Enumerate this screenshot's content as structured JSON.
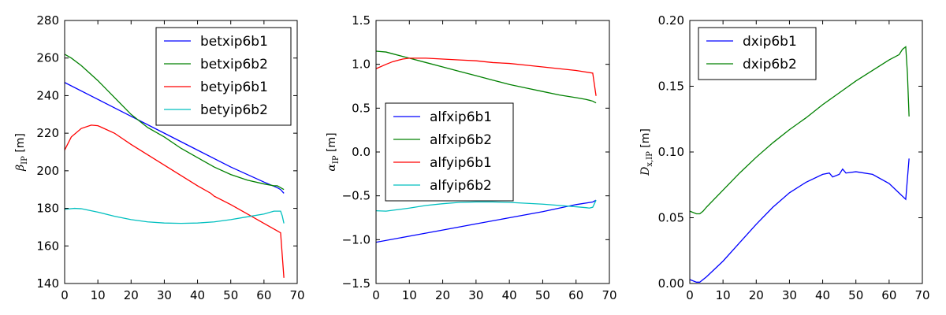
{
  "chart_data": [
    {
      "type": "line",
      "ylabel_main": "β",
      "ylabel_sub": "IP",
      "ylabel_unit": " [m]",
      "xlim": [
        0,
        70
      ],
      "ylim": [
        140,
        280
      ],
      "xticks": [
        0,
        10,
        20,
        30,
        40,
        50,
        60,
        70
      ],
      "yticks": [
        140,
        160,
        180,
        200,
        220,
        240,
        260,
        280
      ],
      "legend_position": "top-right",
      "series": [
        {
          "name": "betxip6b1",
          "color": "#0000ff",
          "x": [
            0,
            10,
            20,
            30,
            40,
            50,
            60,
            64,
            65,
            66
          ],
          "y": [
            247,
            238,
            229,
            220,
            211,
            202,
            194,
            191,
            190,
            188
          ]
        },
        {
          "name": "betxip6b2",
          "color": "#008000",
          "x": [
            0,
            2,
            5,
            10,
            15,
            20,
            25,
            30,
            35,
            40,
            45,
            50,
            55,
            60,
            63,
            64,
            65,
            66
          ],
          "y": [
            262,
            260,
            256,
            248,
            239,
            230,
            223,
            218,
            212,
            207,
            202,
            198,
            195,
            193,
            192,
            192,
            191,
            190
          ]
        },
        {
          "name": "betyip6b1",
          "color": "#ff0000",
          "x": [
            0,
            2,
            5,
            8,
            10,
            15,
            20,
            25,
            30,
            35,
            40,
            44,
            45,
            50,
            55,
            60,
            64,
            65,
            65.5,
            66
          ],
          "y": [
            211,
            218,
            222.5,
            224.3,
            224,
            220,
            214,
            208.5,
            203,
            197.5,
            192,
            188,
            186.5,
            182,
            177,
            172,
            168,
            167,
            155,
            143
          ]
        },
        {
          "name": "betyip6b2",
          "color": "#00bfbf",
          "x": [
            0,
            3,
            5,
            10,
            15,
            20,
            25,
            30,
            35,
            40,
            45,
            50,
            55,
            60,
            63,
            64,
            65,
            65.5,
            66
          ],
          "y": [
            179.5,
            180,
            179.8,
            178,
            175.8,
            174,
            172.8,
            172.2,
            172,
            172.2,
            172.8,
            174,
            175.5,
            177,
            178.5,
            178.5,
            178.5,
            176,
            172
          ]
        }
      ]
    },
    {
      "type": "line",
      "ylabel_main": "α",
      "ylabel_sub": "IP",
      "ylabel_unit": " [m]",
      "xlim": [
        0,
        70
      ],
      "ylim": [
        -1.5,
        1.5
      ],
      "xticks": [
        0,
        10,
        20,
        30,
        40,
        50,
        60,
        70
      ],
      "yticks": [
        -1.5,
        -1.0,
        -0.5,
        0.0,
        0.5,
        1.0,
        1.5
      ],
      "ytick_labels": [
        "−1.5",
        "−1.0",
        "−0.5",
        "0.0",
        "0.5",
        "1.0",
        "1.5"
      ],
      "legend_position": "center-left",
      "series": [
        {
          "name": "alfxip6b1",
          "color": "#0000ff",
          "x": [
            0,
            10,
            20,
            30,
            40,
            50,
            60,
            65,
            66
          ],
          "y": [
            -1.03,
            -0.96,
            -0.89,
            -0.82,
            -0.75,
            -0.68,
            -0.6,
            -0.57,
            -0.55
          ]
        },
        {
          "name": "alfxip6b2",
          "color": "#008000",
          "x": [
            0,
            3,
            5,
            10,
            15,
            20,
            25,
            30,
            35,
            40,
            45,
            50,
            55,
            60,
            63,
            64,
            65,
            66
          ],
          "y": [
            1.15,
            1.14,
            1.12,
            1.07,
            1.02,
            0.97,
            0.92,
            0.87,
            0.82,
            0.77,
            0.73,
            0.69,
            0.65,
            0.62,
            0.6,
            0.59,
            0.58,
            0.56
          ]
        },
        {
          "name": "alfyip6b1",
          "color": "#ff0000",
          "x": [
            0,
            3,
            5,
            8,
            10,
            12,
            15,
            20,
            25,
            30,
            35,
            40,
            45,
            50,
            55,
            60,
            65,
            66
          ],
          "y": [
            0.95,
            1.0,
            1.03,
            1.06,
            1.07,
            1.07,
            1.07,
            1.06,
            1.05,
            1.04,
            1.02,
            1.01,
            0.99,
            0.97,
            0.95,
            0.93,
            0.9,
            0.64
          ]
        },
        {
          "name": "alfyip6b2",
          "color": "#00bfbf",
          "x": [
            0,
            3,
            5,
            10,
            15,
            20,
            25,
            30,
            35,
            40,
            45,
            50,
            55,
            60,
            63,
            64,
            65,
            66
          ],
          "y": [
            -0.67,
            -0.675,
            -0.665,
            -0.64,
            -0.61,
            -0.59,
            -0.575,
            -0.57,
            -0.57,
            -0.575,
            -0.585,
            -0.595,
            -0.61,
            -0.625,
            -0.635,
            -0.64,
            -0.63,
            -0.55
          ]
        }
      ]
    },
    {
      "type": "line",
      "ylabel_main": "D",
      "ylabel_sub": "x,IP",
      "ylabel_unit": " [m]",
      "xlim": [
        0,
        70
      ],
      "ylim": [
        0.0,
        0.2
      ],
      "xticks": [
        0,
        10,
        20,
        30,
        40,
        50,
        60,
        70
      ],
      "yticks": [
        0.0,
        0.05,
        0.1,
        0.15,
        0.2
      ],
      "ytick_labels": [
        "0.00",
        "0.05",
        "0.10",
        "0.15",
        "0.20"
      ],
      "legend_position": "top-left",
      "series": [
        {
          "name": "dxip6b1",
          "color": "#0000ff",
          "x": [
            0,
            2,
            3,
            5,
            10,
            15,
            20,
            25,
            30,
            35,
            40,
            42,
            43,
            45,
            46,
            47,
            50,
            55,
            60,
            65,
            66
          ],
          "y": [
            0.003,
            0.001,
            0.001,
            0.005,
            0.017,
            0.031,
            0.045,
            0.058,
            0.069,
            0.077,
            0.083,
            0.084,
            0.081,
            0.083,
            0.087,
            0.084,
            0.085,
            0.083,
            0.076,
            0.064,
            0.095
          ]
        },
        {
          "name": "dxip6b2",
          "color": "#008000",
          "x": [
            0,
            2,
            3,
            4,
            5,
            10,
            15,
            20,
            25,
            30,
            35,
            40,
            45,
            50,
            55,
            60,
            63,
            64,
            65,
            65.5,
            66
          ],
          "y": [
            0.055,
            0.053,
            0.053,
            0.055,
            0.058,
            0.071,
            0.084,
            0.096,
            0.107,
            0.117,
            0.126,
            0.136,
            0.145,
            0.154,
            0.162,
            0.17,
            0.174,
            0.178,
            0.18,
            0.16,
            0.127
          ]
        }
      ]
    }
  ]
}
